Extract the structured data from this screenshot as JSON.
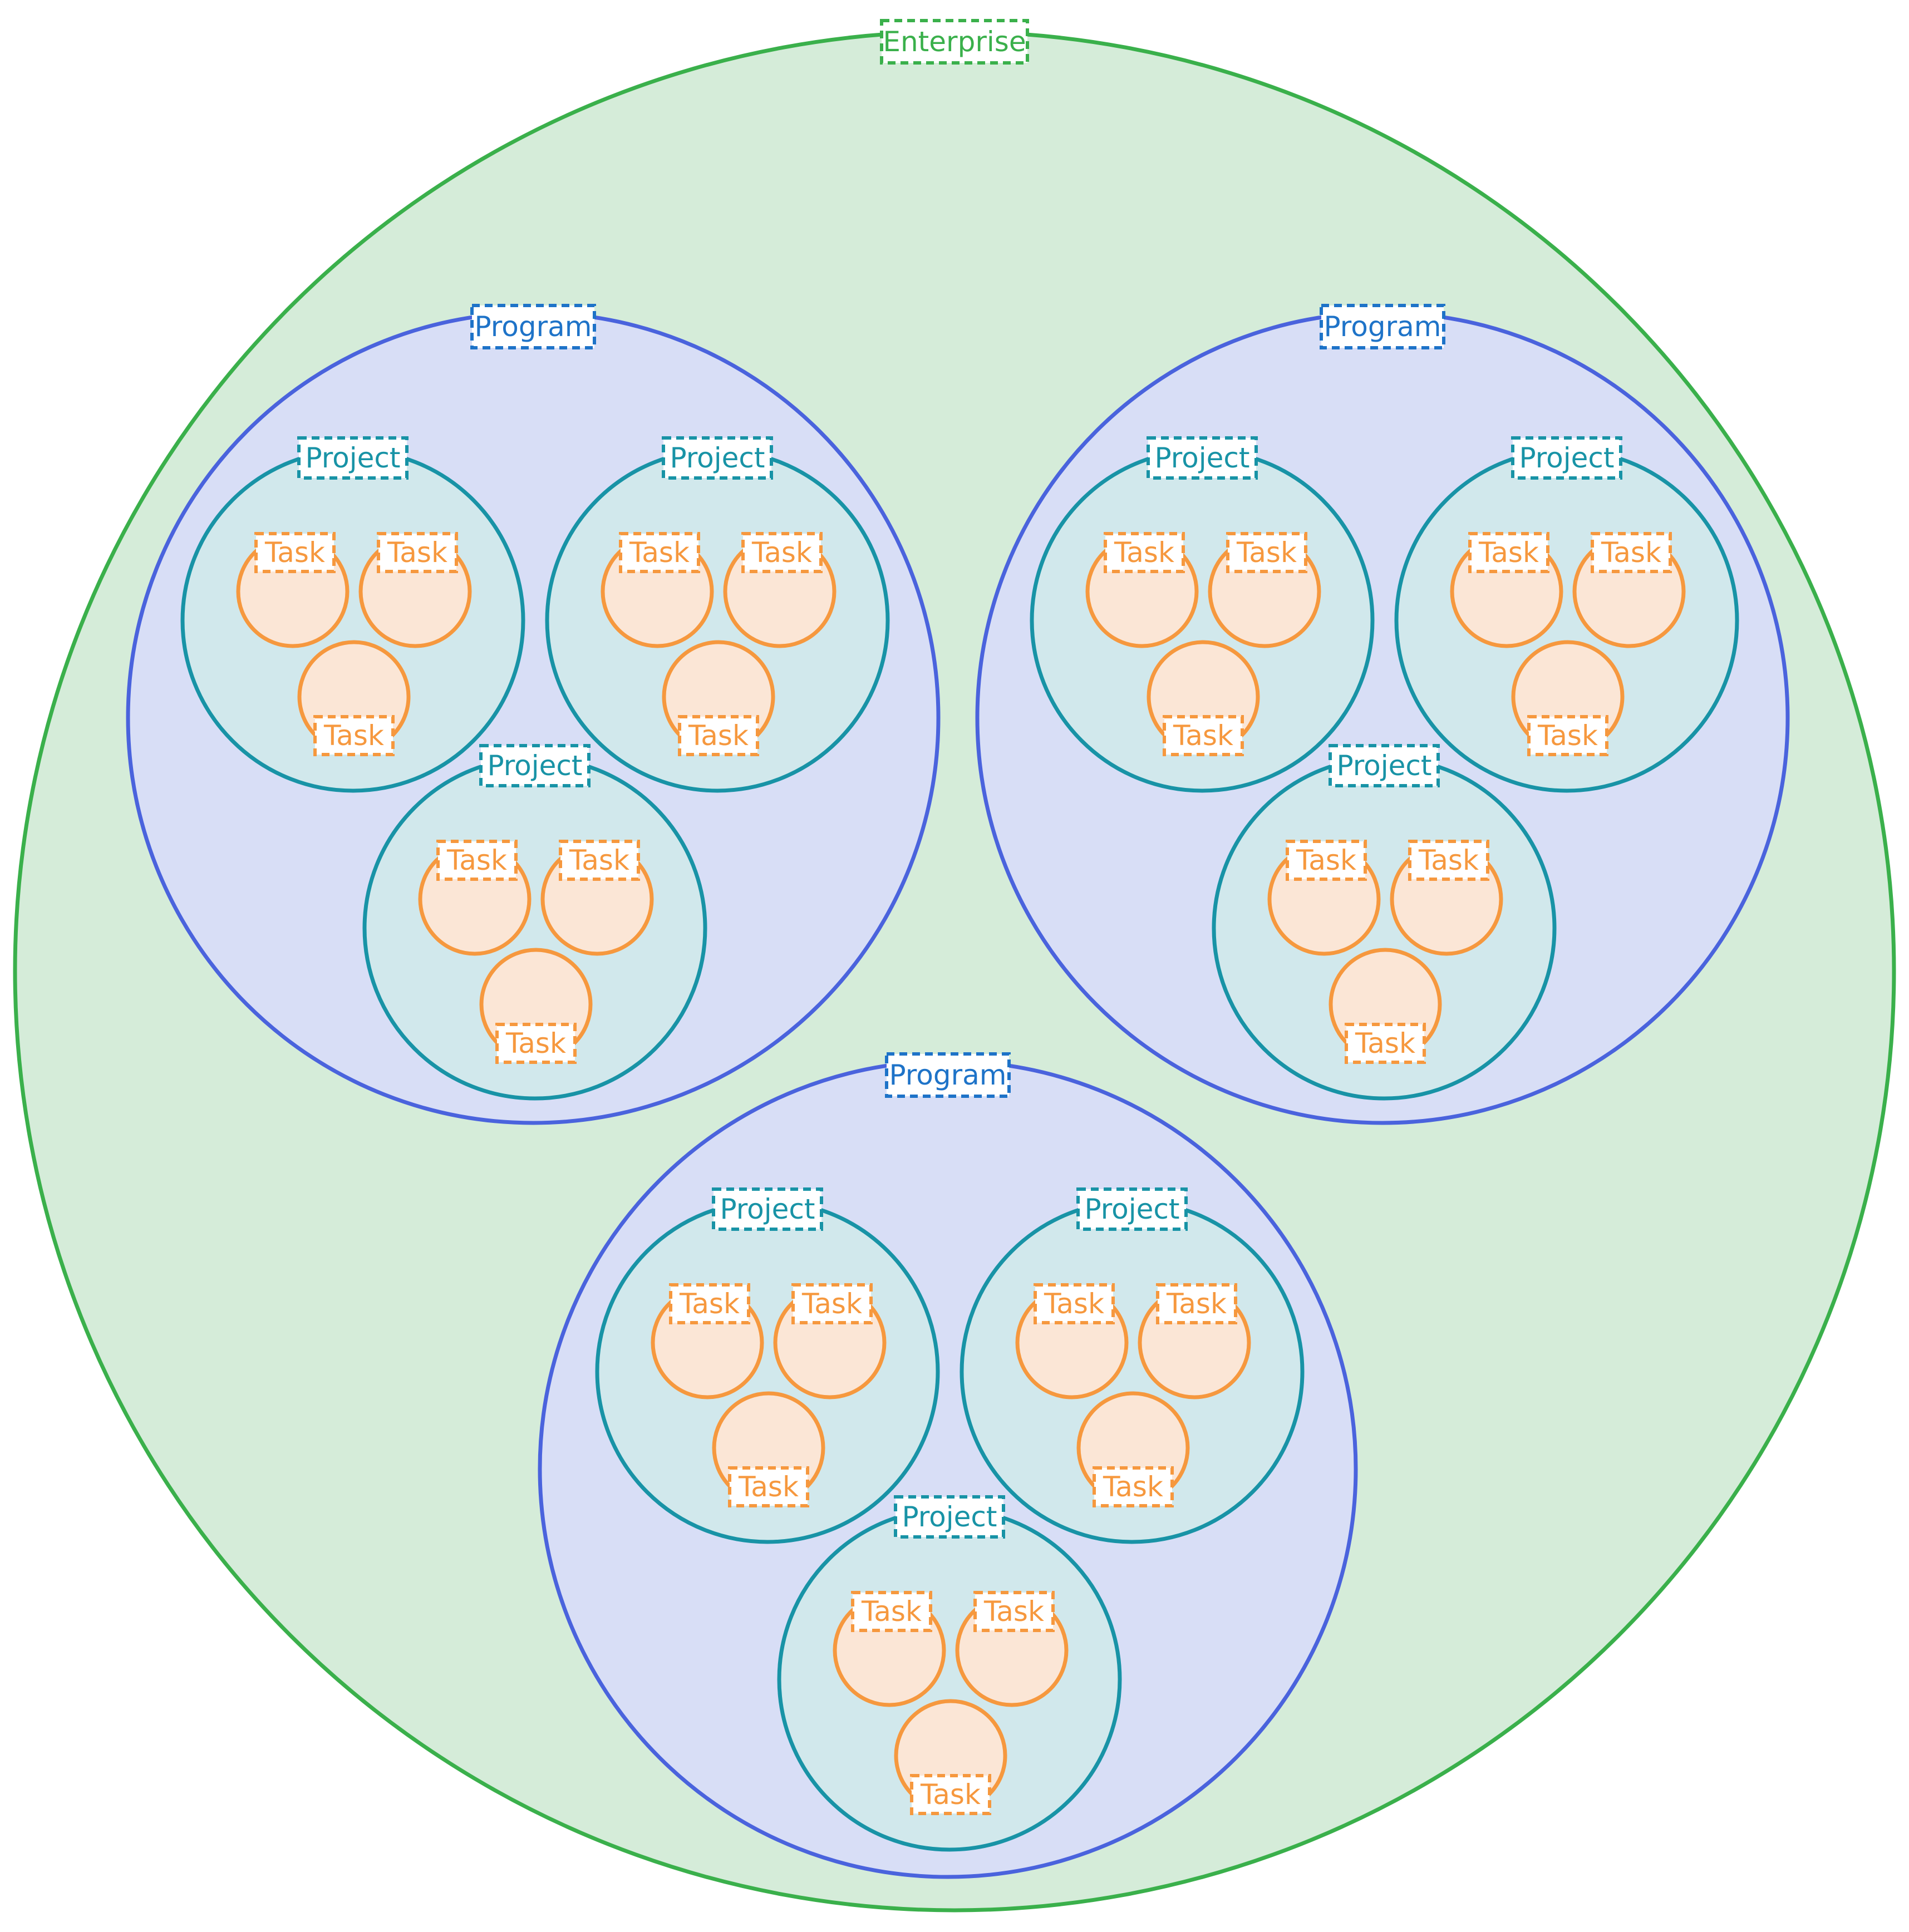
{
  "colors": {
    "enterprise": {
      "fill": "#d5ecd9",
      "stroke": "#3ab04b",
      "text": "#3ab04b"
    },
    "program": {
      "fill": "#d8def6",
      "stroke": "#4a63dd",
      "text": "#1e73c8",
      "label_stroke": "#1e73c8"
    },
    "project": {
      "fill": "#d1e8ec",
      "stroke": "#1893a6",
      "text": "#1893a6"
    },
    "task": {
      "fill": "#fbe6d6",
      "stroke": "#f6983e",
      "text": "#f6983e"
    }
  },
  "enterprise": {
    "label": "Enterprise",
    "programs": [
      {
        "label": "Program",
        "projects": [
          {
            "label": "Project",
            "tasks": [
              "Task",
              "Task",
              "Task"
            ]
          },
          {
            "label": "Project",
            "tasks": [
              "Task",
              "Task",
              "Task"
            ]
          },
          {
            "label": "Project",
            "tasks": [
              "Task",
              "Task",
              "Task"
            ]
          }
        ]
      },
      {
        "label": "Program",
        "projects": [
          {
            "label": "Project",
            "tasks": [
              "Task",
              "Task",
              "Task"
            ]
          },
          {
            "label": "Project",
            "tasks": [
              "Task",
              "Task",
              "Task"
            ]
          },
          {
            "label": "Project",
            "tasks": [
              "Task",
              "Task",
              "Task"
            ]
          }
        ]
      },
      {
        "label": "Program",
        "projects": [
          {
            "label": "Project",
            "tasks": [
              "Task",
              "Task",
              "Task"
            ]
          },
          {
            "label": "Project",
            "tasks": [
              "Task",
              "Task",
              "Task"
            ]
          },
          {
            "label": "Project",
            "tasks": [
              "Task",
              "Task",
              "Task"
            ]
          }
        ]
      }
    ]
  }
}
